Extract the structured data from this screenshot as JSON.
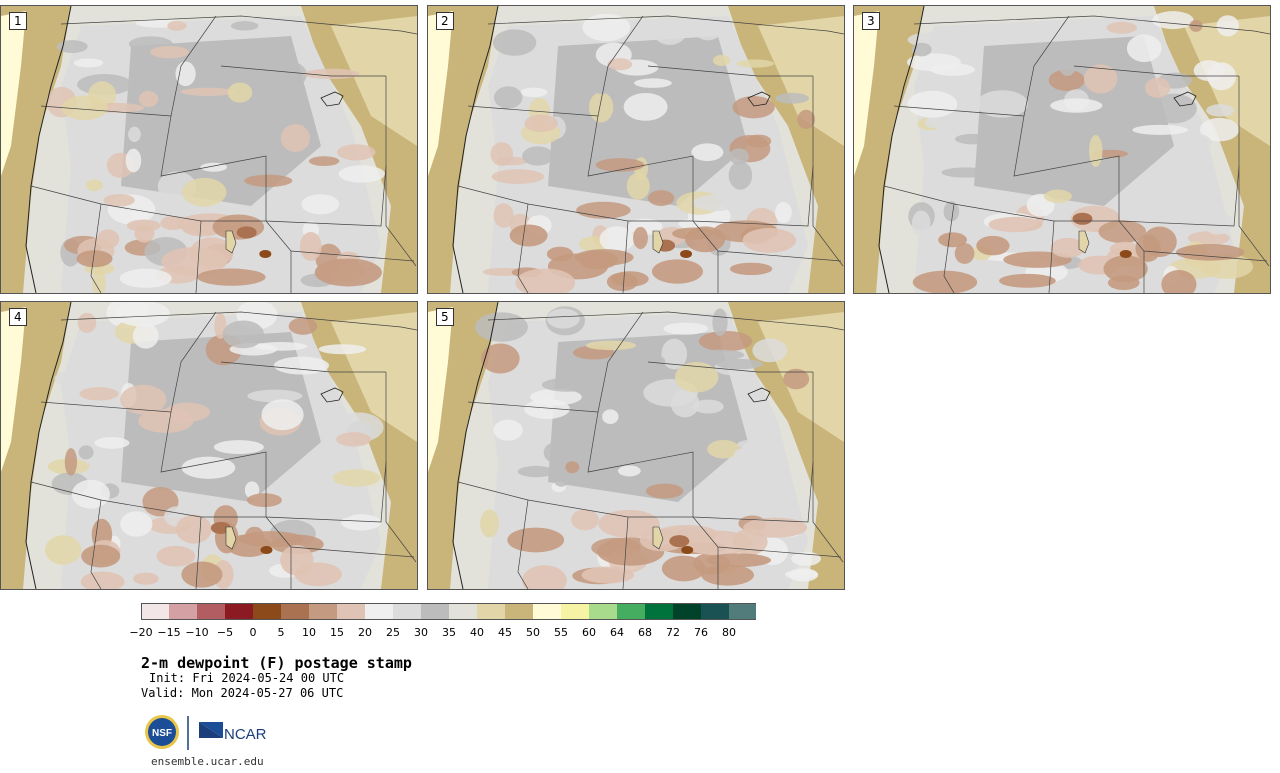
{
  "panels": [
    {
      "label": "1"
    },
    {
      "label": "2"
    },
    {
      "label": "3"
    },
    {
      "label": "4"
    },
    {
      "label": "5"
    }
  ],
  "colorbar": {
    "colors": [
      "#f2e6e6",
      "#d4a0a3",
      "#b25d61",
      "#8c1a22",
      "#8c4a1a",
      "#aa7250",
      "#c49a80",
      "#dfc3b4",
      "#efefef",
      "#dcdcdc",
      "#bcbcbc",
      "#e2e2da",
      "#e2d6a8",
      "#c9b47a",
      "#fffbd6",
      "#f6f4a4",
      "#a8dc8c",
      "#44ad60",
      "#00733c",
      "#00432a",
      "#1a5254",
      "#527c7c"
    ],
    "ticks": [
      "−20",
      "−15",
      "−10",
      "−5",
      "0",
      "5",
      "10",
      "15",
      "20",
      "25",
      "30",
      "35",
      "40",
      "45",
      "50",
      "55",
      "60",
      "64",
      "68",
      "72",
      "76",
      "80"
    ]
  },
  "title": "2-m dewpoint (F) postage stamp",
  "init": "Init: Fri 2024-05-24 00 UTC",
  "valid": "Valid: Mon 2024-05-27 06 UTC",
  "logos": {
    "nsf": "NSF",
    "ncar": "NCAR"
  },
  "website": "ensemble.ucar.edu"
}
